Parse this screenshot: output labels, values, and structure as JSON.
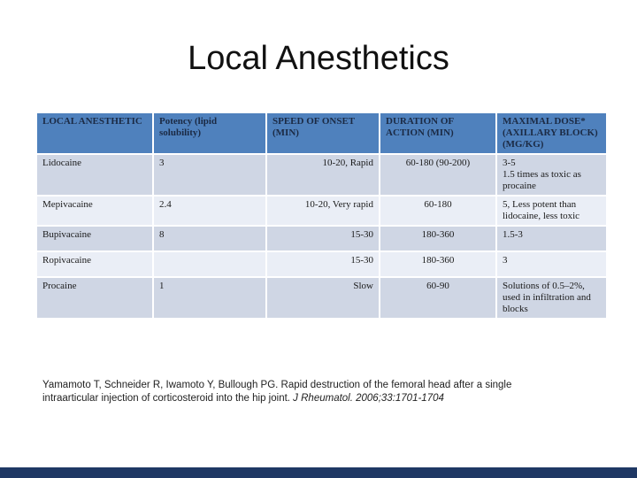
{
  "title": "Local Anesthetics",
  "table": {
    "headers": [
      "LOCAL ANESTHETIC",
      "Potency (lipid solubility)",
      "SPEED OF ONSET (MIN)",
      "DURATION OF ACTION (MIN)",
      "MAXIMAL DOSE* (AXILLARY BLOCK) (MG/KG)"
    ],
    "rows": [
      {
        "name": "Lidocaine",
        "potency": "3",
        "onset": "10-20, Rapid",
        "duration": "60-180 (90-200)",
        "dose": "3-5\n1.5 times as toxic as procaine"
      },
      {
        "name": "Mepivacaine",
        "potency": "2.4",
        "onset": "10-20, Very rapid",
        "duration": "60-180",
        "dose": "5,  Less potent than lidocaine, less toxic"
      },
      {
        "name": "Bupivacaine",
        "potency": "8",
        "onset": "15-30",
        "duration": "180-360",
        "dose": "1.5-3"
      },
      {
        "name": "Ropivacaine",
        "potency": "",
        "onset": "15-30",
        "duration": "180-360",
        "dose": "3"
      },
      {
        "name": "Procaine",
        "potency": "1",
        "onset": "Slow",
        "duration": "60-90",
        "dose": "Solutions of 0.5–2%, used in infiltration and blocks"
      }
    ]
  },
  "citation": {
    "plain": "Yamamoto T, Schneider R, Iwamoto Y, Bullough PG. Rapid destruction of the femoral head after a single intraarticular injection of corticosteroid into the hip joint. ",
    "journal": "J Rheumatol. 2006;33:1701-1704"
  },
  "colors": {
    "header_bg": "#4f81bd",
    "header_text": "#1b2a44",
    "row_band_dark": "#cfd6e4",
    "row_band_light": "#eaeef6",
    "footer_bar": "#1f3864"
  }
}
